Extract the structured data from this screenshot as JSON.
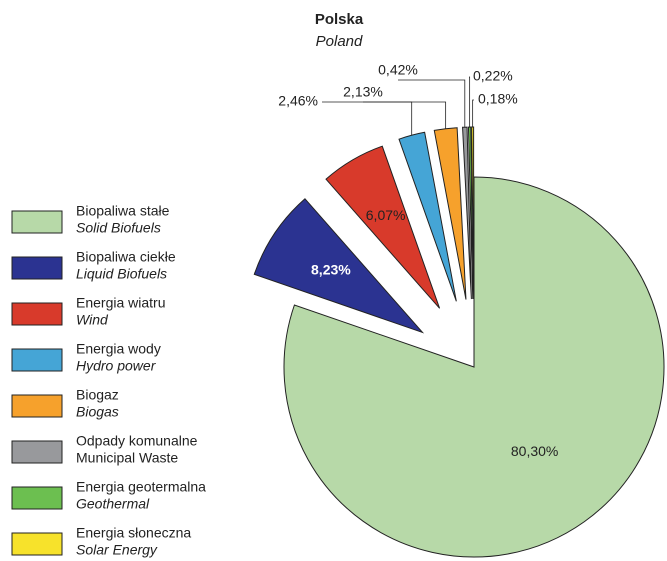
{
  "chart_data": {
    "type": "pie",
    "title": "Polska",
    "subtitle": "Poland",
    "categories": [
      "Biopaliwa stałe",
      "Biopaliwa ciekłe",
      "Energia wiatru",
      "Energia wody",
      "Biogaz",
      "Odpady komunalne",
      "Energia geotermalna",
      "Energia słoneczna"
    ],
    "categories_en": [
      "Solid Biofuels",
      "Liquid Biofuels",
      "Wind",
      "Hydro power",
      "Biogas",
      "Municipal Waste",
      "Geothermal",
      "Solar Energy"
    ],
    "values": [
      80.3,
      8.23,
      6.07,
      2.46,
      2.13,
      0.42,
      0.22,
      0.18
    ],
    "value_labels": [
      "80,30%",
      "8,23%",
      "6,07%",
      "2,46%",
      "2,13%",
      "0,42%",
      "0,22%",
      "0,18%"
    ],
    "colors": [
      "#b7d9a8",
      "#2b3391",
      "#d83a2b",
      "#45a5d6",
      "#f6a12c",
      "#98999c",
      "#6cbf50",
      "#f7e22b"
    ]
  }
}
